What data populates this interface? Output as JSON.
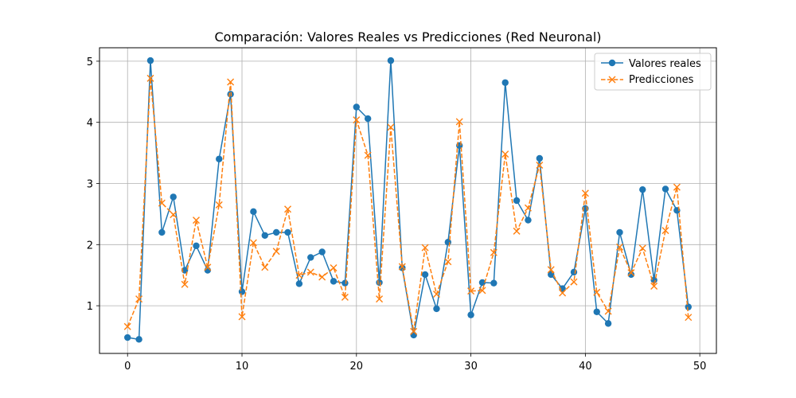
{
  "chart_data": {
    "type": "line",
    "title": "Comparación: Valores Reales vs Predicciones (Red Neuronal)",
    "xlabel": "",
    "ylabel": "",
    "xlim": [
      -2.45,
      51.45
    ],
    "ylim": [
      0.22,
      5.22
    ],
    "x_ticks": [
      0,
      10,
      20,
      30,
      40,
      50
    ],
    "y_ticks": [
      1,
      2,
      3,
      4,
      5
    ],
    "grid": true,
    "legend_position": "top-right",
    "x": [
      0,
      1,
      2,
      3,
      4,
      5,
      6,
      7,
      8,
      9,
      10,
      11,
      12,
      13,
      14,
      15,
      16,
      17,
      18,
      19,
      20,
      21,
      22,
      23,
      24,
      25,
      26,
      27,
      28,
      29,
      30,
      31,
      32,
      33,
      34,
      35,
      36,
      37,
      38,
      39,
      40,
      41,
      42,
      43,
      44,
      45,
      46,
      47,
      48,
      49
    ],
    "series": [
      {
        "name": "Valores reales",
        "color": "#1f77b4",
        "line_style": "solid",
        "marker": "circle",
        "values": [
          0.48,
          0.45,
          5.01,
          2.2,
          2.78,
          1.58,
          1.98,
          1.58,
          3.4,
          4.46,
          1.23,
          2.54,
          2.15,
          2.2,
          2.2,
          1.36,
          1.79,
          1.88,
          1.4,
          1.37,
          4.25,
          4.06,
          1.38,
          5.01,
          1.62,
          0.52,
          1.51,
          0.95,
          2.04,
          3.62,
          0.85,
          1.38,
          1.37,
          4.65,
          2.72,
          2.4,
          3.41,
          1.51,
          1.28,
          1.55,
          2.59,
          0.9,
          0.71,
          2.2,
          1.51,
          2.9,
          1.42,
          2.91,
          2.56,
          0.98
        ]
      },
      {
        "name": "Predicciones",
        "color": "#ff7f0e",
        "line_style": "dashed",
        "marker": "x",
        "values": [
          0.66,
          1.11,
          4.72,
          2.68,
          2.49,
          1.35,
          2.4,
          1.63,
          2.65,
          4.66,
          0.82,
          2.03,
          1.63,
          1.89,
          2.58,
          1.5,
          1.55,
          1.47,
          1.62,
          1.14,
          4.04,
          3.46,
          1.11,
          3.92,
          1.64,
          0.58,
          1.95,
          1.19,
          1.72,
          4.01,
          1.24,
          1.25,
          1.87,
          3.48,
          2.22,
          2.6,
          3.3,
          1.59,
          1.21,
          1.39,
          2.84,
          1.22,
          0.91,
          1.96,
          1.54,
          1.94,
          1.32,
          2.23,
          2.94,
          0.81
        ]
      }
    ]
  }
}
